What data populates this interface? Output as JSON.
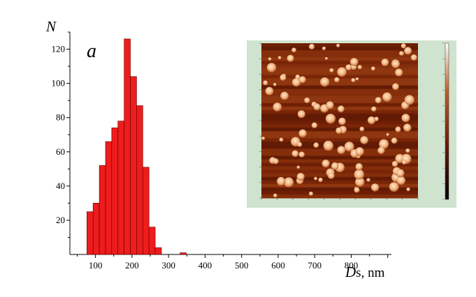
{
  "chart_data": {
    "type": "bar",
    "panel_label": "a",
    "ylabel": "N",
    "xlabel_symbol": "D",
    "xlabel_rest": "s, nm",
    "xlim": [
      30,
      910
    ],
    "ylim": [
      0,
      130
    ],
    "xticks": [
      100,
      200,
      300,
      400,
      500,
      600,
      700,
      800
    ],
    "yticks": [
      20,
      40,
      60,
      80,
      100,
      120
    ],
    "bin_width": 17,
    "bars": [
      {
        "x": 85,
        "value": 25
      },
      {
        "x": 102,
        "value": 30
      },
      {
        "x": 119,
        "value": 52
      },
      {
        "x": 136,
        "value": 66
      },
      {
        "x": 153,
        "value": 74
      },
      {
        "x": 170,
        "value": 78
      },
      {
        "x": 187,
        "value": 126
      },
      {
        "x": 204,
        "value": 104
      },
      {
        "x": 221,
        "value": 87
      },
      {
        "x": 238,
        "value": 51
      },
      {
        "x": 255,
        "value": 16
      },
      {
        "x": 272,
        "value": 4
      },
      {
        "x": 340,
        "value": 1
      }
    ],
    "bar_color": "#ee1c1c",
    "inset": {
      "type": "afm-image",
      "background": "#cfe3cf",
      "colorbar": [
        "#000000",
        "#6b1a05",
        "#c0622a",
        "#ffffff"
      ]
    }
  }
}
